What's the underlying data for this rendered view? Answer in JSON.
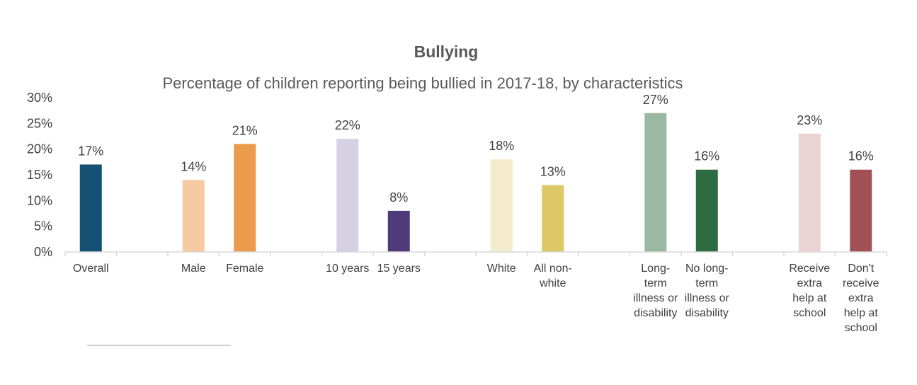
{
  "chart_data": {
    "type": "bar",
    "title": "Bullying",
    "subtitle": "Percentage of children reporting being bullied in 2017-18, by characteristics",
    "y_ticks": [
      "0%",
      "5%",
      "10%",
      "15%",
      "20%",
      "25%",
      "30%"
    ],
    "ylim": [
      0,
      30
    ],
    "grid": false,
    "categories": [
      {
        "label": [
          "Overall"
        ],
        "value": 17,
        "data_label": "17%",
        "color": "#154f74"
      },
      {
        "label": [],
        "value": null,
        "data_label": "",
        "color": ""
      },
      {
        "label": [
          "Male"
        ],
        "value": 14,
        "data_label": "14%",
        "color": "#f6c9a1"
      },
      {
        "label": [
          "Female"
        ],
        "value": 21,
        "data_label": "21%",
        "color": "#ec9a4b"
      },
      {
        "label": [],
        "value": null,
        "data_label": "",
        "color": ""
      },
      {
        "label": [
          "10 years"
        ],
        "value": 22,
        "data_label": "22%",
        "color": "#d6d0e3"
      },
      {
        "label": [
          "15 years"
        ],
        "value": 8,
        "data_label": "8%",
        "color": "#513a7a"
      },
      {
        "label": [],
        "value": null,
        "data_label": "",
        "color": ""
      },
      {
        "label": [
          "White"
        ],
        "value": 18,
        "data_label": "18%",
        "color": "#f3ebcb"
      },
      {
        "label": [
          "All non-",
          "white"
        ],
        "value": 13,
        "data_label": "13%",
        "color": "#dcc966"
      },
      {
        "label": [],
        "value": null,
        "data_label": "",
        "color": ""
      },
      {
        "label": [
          "Long-",
          "term",
          "illness or",
          "disability"
        ],
        "value": 27,
        "data_label": "27%",
        "color": "#9bb8a0"
      },
      {
        "label": [
          "No long-",
          "term",
          "illness or",
          "disability"
        ],
        "value": 16,
        "data_label": "16%",
        "color": "#2f6b42"
      },
      {
        "label": [],
        "value": null,
        "data_label": "",
        "color": ""
      },
      {
        "label": [
          "Receive",
          "extra",
          "help at",
          "school"
        ],
        "value": 23,
        "data_label": "23%",
        "color": "#ebd3d5"
      },
      {
        "label": [
          "Don't",
          "receive",
          "extra",
          "help at",
          "school"
        ],
        "value": 16,
        "data_label": "16%",
        "color": "#a35055"
      }
    ]
  }
}
